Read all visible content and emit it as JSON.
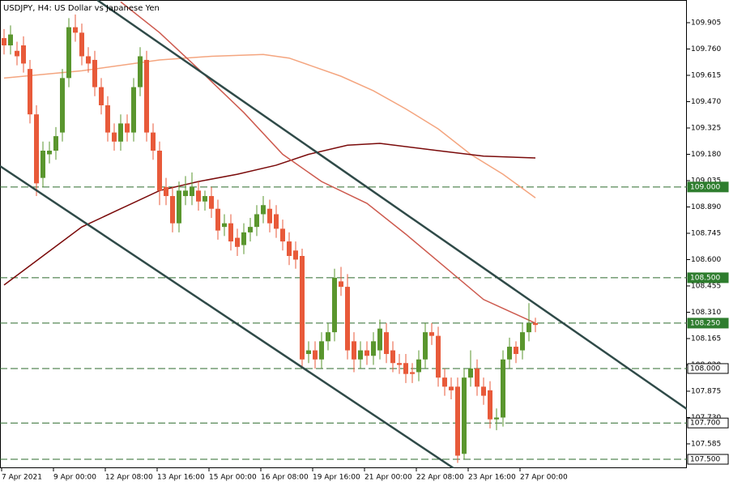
{
  "chart_data": {
    "type": "candlestick",
    "title": "USDJPY, H4:  US Dollar vs Japanese Yen",
    "categories": [
      "7 Apr 2021",
      null,
      null,
      null,
      null,
      null,
      null,
      null,
      "9 Apr 00:00",
      null,
      null,
      null,
      null,
      null,
      null,
      null,
      "12 Apr 08:00",
      null,
      null,
      null,
      null,
      null,
      null,
      null,
      "13 Apr 16:00",
      null,
      null,
      null,
      null,
      null,
      null,
      null,
      "15 Apr 00:00",
      null,
      null,
      null,
      null,
      null,
      null,
      null,
      "16 Apr 08:00",
      null,
      null,
      null,
      null,
      null,
      null,
      null,
      "19 Apr 16:00",
      null,
      null,
      null,
      null,
      null,
      null,
      null,
      "21 Apr 00:00",
      null,
      null,
      null,
      null,
      null,
      null,
      null,
      "22 Apr 08:00",
      null,
      null,
      null,
      null,
      null,
      null,
      null,
      "23 Apr 16:00",
      null,
      null,
      null,
      null,
      null,
      null,
      null,
      "27 Apr 00:00",
      null,
      null
    ],
    "open": [
      109.82,
      109.78,
      109.75,
      109.78,
      109.65,
      109.4,
      109.05,
      109.18,
      109.2,
      109.3,
      109.6,
      109.88,
      109.85,
      109.72,
      109.7,
      109.55,
      109.45,
      109.3,
      109.25,
      109.35,
      109.3,
      109.55,
      109.7,
      109.3,
      109.2,
      109.0,
      108.95,
      108.8,
      108.95,
      108.95,
      108.98,
      108.92,
      108.95,
      108.88,
      108.78,
      108.8,
      108.72,
      108.68,
      108.75,
      108.78,
      108.85,
      108.88,
      108.85,
      108.77,
      108.7,
      108.65,
      108.62,
      108.08,
      108.1,
      108.05,
      108.15,
      108.2,
      108.48,
      108.45,
      108.15,
      108.05,
      108.1,
      108.07,
      108.1,
      108.2,
      108.1,
      108.03,
      108.03,
      107.98,
      107.98,
      108.05,
      108.2,
      108.18,
      107.95,
      107.9,
      107.9,
      107.53,
      107.95,
      108.0,
      107.9,
      107.88,
      107.72,
      107.73,
      108.05,
      108.12,
      108.1,
      108.2,
      108.25
    ],
    "high": [
      109.87,
      109.89,
      109.8,
      109.83,
      109.7,
      109.45,
      109.25,
      109.25,
      109.33,
      109.65,
      109.93,
      109.95,
      109.9,
      109.77,
      109.75,
      109.6,
      109.5,
      109.35,
      109.4,
      109.4,
      109.6,
      109.77,
      109.75,
      109.35,
      109.25,
      109.05,
      109.0,
      109.03,
      109.06,
      109.08,
      109.03,
      108.98,
      109.0,
      108.93,
      108.85,
      108.85,
      108.77,
      108.8,
      108.83,
      108.9,
      108.95,
      108.93,
      108.9,
      108.82,
      108.75,
      108.7,
      108.66,
      108.15,
      108.15,
      108.2,
      108.25,
      108.55,
      108.56,
      108.52,
      108.2,
      108.15,
      108.15,
      108.2,
      108.27,
      108.25,
      108.15,
      108.08,
      108.08,
      108.03,
      108.1,
      108.25,
      108.25,
      108.23,
      108.0,
      107.95,
      107.95,
      108.0,
      108.1,
      108.05,
      107.95,
      107.93,
      107.78,
      108.1,
      108.17,
      108.15,
      108.25,
      108.36,
      108.28
    ],
    "low": [
      109.73,
      109.73,
      109.67,
      109.63,
      109.35,
      108.95,
      109.0,
      109.13,
      109.15,
      109.25,
      109.55,
      109.8,
      109.67,
      109.63,
      109.5,
      109.4,
      109.25,
      109.2,
      109.2,
      109.25,
      109.25,
      109.5,
      109.25,
      109.15,
      108.9,
      108.9,
      108.75,
      108.75,
      108.9,
      108.9,
      108.87,
      108.87,
      108.83,
      108.71,
      108.73,
      108.65,
      108.62,
      108.63,
      108.7,
      108.73,
      108.8,
      108.75,
      108.72,
      108.65,
      108.57,
      108.55,
      108.0,
      108.03,
      108.0,
      108.0,
      108.1,
      108.15,
      108.4,
      108.05,
      107.98,
      108.0,
      108.02,
      108.02,
      108.05,
      108.03,
      107.98,
      107.97,
      107.92,
      107.92,
      107.93,
      108.0,
      108.13,
      107.9,
      107.85,
      107.83,
      107.48,
      107.5,
      107.9,
      107.85,
      107.8,
      107.67,
      107.66,
      107.68,
      108.0,
      108.03,
      108.05,
      108.15,
      108.2
    ],
    "close": [
      109.78,
      109.84,
      109.72,
      109.68,
      109.4,
      109.02,
      109.2,
      109.2,
      109.28,
      109.6,
      109.88,
      109.85,
      109.72,
      109.68,
      109.55,
      109.45,
      109.3,
      109.25,
      109.35,
      109.3,
      109.55,
      109.72,
      109.3,
      109.2,
      108.98,
      108.95,
      108.8,
      108.98,
      108.98,
      109.0,
      108.92,
      108.95,
      108.88,
      108.76,
      108.8,
      108.7,
      108.67,
      108.75,
      108.78,
      108.85,
      108.9,
      108.8,
      108.77,
      108.7,
      108.62,
      108.6,
      108.05,
      108.1,
      108.05,
      108.15,
      108.2,
      108.5,
      108.45,
      108.1,
      108.05,
      108.1,
      108.07,
      108.15,
      108.22,
      108.08,
      108.03,
      108.02,
      107.97,
      107.97,
      108.05,
      108.2,
      108.18,
      107.95,
      107.9,
      107.88,
      107.52,
      107.95,
      108.0,
      107.9,
      107.85,
      107.72,
      107.73,
      108.05,
      108.12,
      108.08,
      108.2,
      108.25,
      108.24
    ],
    "up_color": "#5a962e",
    "down_color": "#e85a3a",
    "moving_averages": [
      {
        "color": "#f4a57f",
        "x": [
          0,
          12,
          24,
          32,
          40,
          44,
          52,
          57,
          62,
          67,
          72,
          77,
          82
        ],
        "values": [
          109.6,
          109.64,
          109.7,
          109.72,
          109.73,
          109.71,
          109.61,
          109.53,
          109.43,
          109.32,
          109.18,
          109.07,
          108.94
        ]
      },
      {
        "color": "#7a0a0a",
        "x": [
          0,
          6,
          12,
          18,
          24,
          30,
          36,
          42,
          47,
          53,
          58,
          67,
          74,
          82
        ],
        "values": [
          108.46,
          108.62,
          108.78,
          108.88,
          108.98,
          109.03,
          109.07,
          109.12,
          109.18,
          109.23,
          109.24,
          109.2,
          109.17,
          109.16
        ]
      },
      {
        "color": "#cd5a4e",
        "x": [
          18,
          24,
          30,
          37,
          43,
          49,
          56,
          62,
          68,
          74,
          82
        ],
        "values": [
          110.02,
          109.85,
          109.65,
          109.41,
          109.18,
          109.03,
          108.91,
          108.74,
          108.56,
          108.38,
          108.25
        ]
      }
    ],
    "levels": [
      {
        "value": 109,
        "label": "109.000",
        "color": "#2e7d2e"
      },
      {
        "value": 108.5,
        "label": "108.500",
        "color": "#2e7d2e"
      },
      {
        "value": 108.25,
        "label": "108.250",
        "color": "#2e7d2e"
      },
      {
        "value": 108,
        "label": "108.000",
        "color": "#ffffff"
      },
      {
        "value": 107.7,
        "label": "107.700",
        "color": "#ffffff"
      },
      {
        "value": 107.5,
        "label": "107.500",
        "color": "#ffffff"
      }
    ],
    "ylim": [
      107.451,
      110.03
    ],
    "yticks": [
      109.905,
      {
        "value": 109.76,
        "label": "109.760"
      },
      109.615,
      {
        "value": 109.47,
        "label": "109.470"
      },
      109.325,
      {
        "value": 109.18,
        "label": "109.180"
      },
      109.035,
      {
        "value": 108.89,
        "label": "108.890"
      },
      108.745,
      {
        "value": 108.6,
        "label": "108.600"
      },
      108.455,
      {
        "value": 108.31,
        "label": "108.310"
      },
      108.165,
      {
        "value": 108.02,
        "label": "108.020"
      },
      107.875,
      {
        "value": 107.73,
        "label": "107.730"
      },
      107.585
    ]
  }
}
